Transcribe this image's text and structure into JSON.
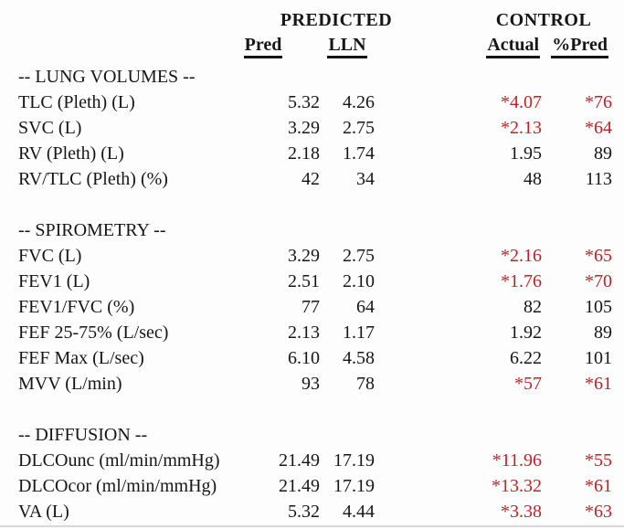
{
  "colors": {
    "text": "#161616",
    "flagged_value": "#c02127",
    "background": "#fdfdfd",
    "bottom_rule": "#d7d7d7"
  },
  "header": {
    "predicted_group": "PREDICTED",
    "control_group": "CONTROL",
    "pred_col": "Pred",
    "lln_col": "LLN",
    "actual_col": "Actual",
    "pctpred_col": "%Pred"
  },
  "sections": [
    {
      "title": "-- LUNG VOLUMES --",
      "rows": [
        {
          "label": "TLC (Pleth) (L)",
          "pred": "5.32",
          "lln": "4.26",
          "actual": "*4.07",
          "pct_pred": "*76",
          "flagged": true
        },
        {
          "label": "SVC (L)",
          "pred": "3.29",
          "lln": "2.75",
          "actual": "*2.13",
          "pct_pred": "*64",
          "flagged": true
        },
        {
          "label": "RV (Pleth) (L)",
          "pred": "2.18",
          "lln": "1.74",
          "actual": "1.95",
          "pct_pred": "89",
          "flagged": false
        },
        {
          "label": "RV/TLC (Pleth) (%)",
          "pred": "42",
          "lln": "34",
          "actual": "48",
          "pct_pred": "113",
          "flagged": false
        }
      ]
    },
    {
      "title": "-- SPIROMETRY --",
      "rows": [
        {
          "label": "FVC (L)",
          "pred": "3.29",
          "lln": "2.75",
          "actual": "*2.16",
          "pct_pred": "*65",
          "flagged": true
        },
        {
          "label": "FEV1 (L)",
          "pred": "2.51",
          "lln": "2.10",
          "actual": "*1.76",
          "pct_pred": "*70",
          "flagged": true
        },
        {
          "label": "FEV1/FVC (%)",
          "pred": "77",
          "lln": "64",
          "actual": "82",
          "pct_pred": "105",
          "flagged": false
        },
        {
          "label": "FEF 25-75% (L/sec)",
          "pred": "2.13",
          "lln": "1.17",
          "actual": "1.92",
          "pct_pred": "89",
          "flagged": false
        },
        {
          "label": "FEF Max (L/sec)",
          "pred": "6.10",
          "lln": "4.58",
          "actual": "6.22",
          "pct_pred": "101",
          "flagged": false
        },
        {
          "label": "MVV (L/min)",
          "pred": "93",
          "lln": "78",
          "actual": "*57",
          "pct_pred": "*61",
          "flagged": true
        }
      ]
    },
    {
      "title": "-- DIFFUSION --",
      "rows": [
        {
          "label": "DLCOunc (ml/min/mmHg)",
          "pred": "21.49",
          "lln": "17.19",
          "actual": "*11.96",
          "pct_pred": "*55",
          "flagged": true
        },
        {
          "label": "DLCOcor (ml/min/mmHg)",
          "pred": "21.49",
          "lln": "17.19",
          "actual": "*13.32",
          "pct_pred": "*61",
          "flagged": true
        },
        {
          "label": "VA (L)",
          "pred": "5.32",
          "lln": "4.44",
          "actual": "*3.38",
          "pct_pred": "*63",
          "flagged": true
        }
      ]
    }
  ]
}
